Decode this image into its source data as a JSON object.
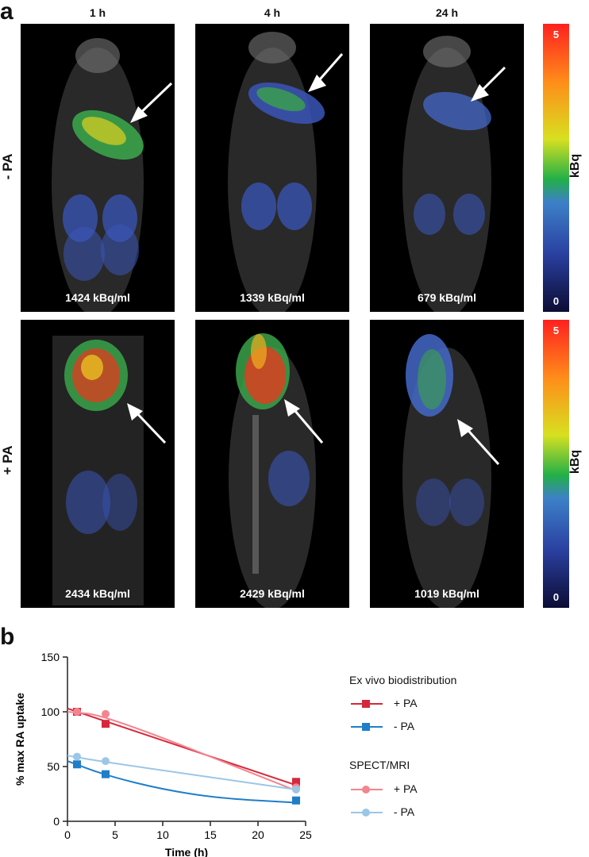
{
  "panel_a": {
    "letter": "a",
    "time_labels": [
      "1 h",
      "4 h",
      "24 h"
    ],
    "rows": [
      {
        "label": "- PA",
        "concentrations": [
          "1424 kBq/ml",
          "1339 kBq/ml",
          "679 kBq/ml"
        ]
      },
      {
        "label": "+ PA",
        "concentrations": [
          "2434 kBq/ml",
          "2429 kBq/ml",
          "1019 kBq/ml"
        ]
      }
    ],
    "scale": {
      "max": "5",
      "min": "0",
      "unit": "kBq"
    }
  },
  "panel_b": {
    "letter": "b",
    "legend": {
      "group1_title": "Ex vivo biodistribution",
      "group2_title": "SPECT/MRI",
      "entries": [
        "+ PA",
        "- PA",
        "+ PA",
        "- PA"
      ]
    }
  },
  "chart_data": {
    "type": "line",
    "xlabel": "Time (h)",
    "ylabel": "% max RA uptake",
    "xlim": [
      0,
      25
    ],
    "ylim": [
      0,
      150
    ],
    "xticks": [
      0,
      5,
      10,
      15,
      20,
      25
    ],
    "yticks": [
      0,
      50,
      100,
      150
    ],
    "series": [
      {
        "name": "+ PA",
        "group": "Ex vivo biodistribution",
        "marker": "square",
        "color": "#d6283c",
        "x": [
          1,
          4,
          24
        ],
        "y": [
          100,
          89,
          36
        ],
        "fit": [
          [
            0,
            103
          ],
          [
            24,
            33
          ]
        ]
      },
      {
        "name": "- PA",
        "group": "Ex vivo biodistribution",
        "marker": "square",
        "color": "#1f7ec8",
        "x": [
          1,
          4,
          24
        ],
        "y": [
          52,
          43,
          19
        ],
        "fit": [
          [
            0,
            55
          ],
          [
            4,
            42
          ],
          [
            10,
            29
          ],
          [
            16,
            21
          ],
          [
            24,
            17
          ]
        ]
      },
      {
        "name": "+ PA",
        "group": "SPECT/MRI",
        "marker": "circle",
        "color": "#f2858f",
        "x": [
          1,
          4,
          24
        ],
        "y": [
          100,
          98,
          31
        ],
        "fit": [
          [
            0,
            100
          ],
          [
            4,
            97
          ],
          [
            24,
            28
          ]
        ]
      },
      {
        "name": "- PA",
        "group": "SPECT/MRI",
        "marker": "circle",
        "color": "#9cc6e6",
        "x": [
          1,
          4,
          24
        ],
        "y": [
          59,
          55,
          29
        ],
        "fit": [
          [
            0,
            60
          ],
          [
            4,
            54
          ],
          [
            24,
            29
          ]
        ]
      }
    ]
  }
}
